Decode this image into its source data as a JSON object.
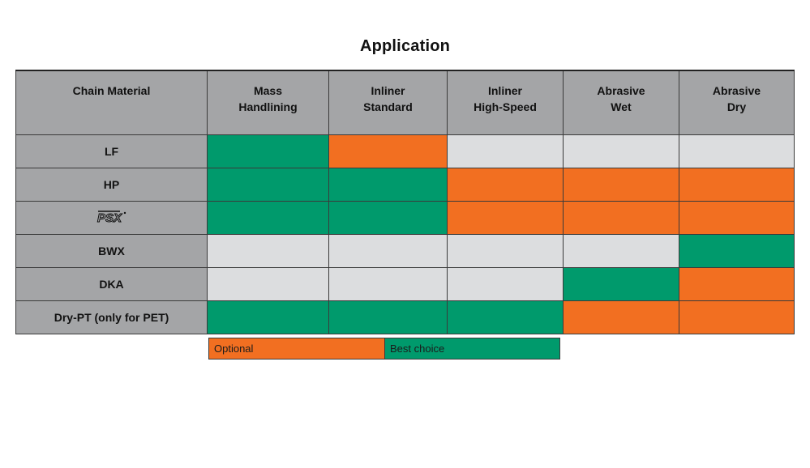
{
  "title": "Application",
  "header": {
    "first_col": "Chain Material",
    "columns": [
      {
        "line1": "Mass",
        "line2": "Handlining"
      },
      {
        "line1": "Inliner",
        "line2": "Standard"
      },
      {
        "line1": "Inliner",
        "line2": "High-Speed"
      },
      {
        "line1": "Abrasive",
        "line2": "Wet"
      },
      {
        "line1": "Abrasive",
        "line2": "Dry"
      }
    ]
  },
  "rows": [
    {
      "label": "LF",
      "cells": [
        "best",
        "optional",
        "none",
        "none",
        "none"
      ]
    },
    {
      "label": "HP",
      "cells": [
        "best",
        "best",
        "optional",
        "optional",
        "optional"
      ]
    },
    {
      "label": "PSX",
      "logo": true,
      "cells": [
        "best",
        "best",
        "optional",
        "optional",
        "optional"
      ]
    },
    {
      "label": "BWX",
      "cells": [
        "none",
        "none",
        "none",
        "none",
        "best"
      ]
    },
    {
      "label": "DKA",
      "cells": [
        "none",
        "none",
        "none",
        "best",
        "optional"
      ]
    },
    {
      "label": "Dry-PT (only for PET)",
      "cells": [
        "best",
        "best",
        "best",
        "optional",
        "optional"
      ]
    }
  ],
  "legend": {
    "optional": "Optional",
    "best": "Best choice"
  },
  "colors": {
    "optional": "#f26f21",
    "best": "#009a6c",
    "none": "#dcdddf",
    "header": "#a4a5a7"
  }
}
